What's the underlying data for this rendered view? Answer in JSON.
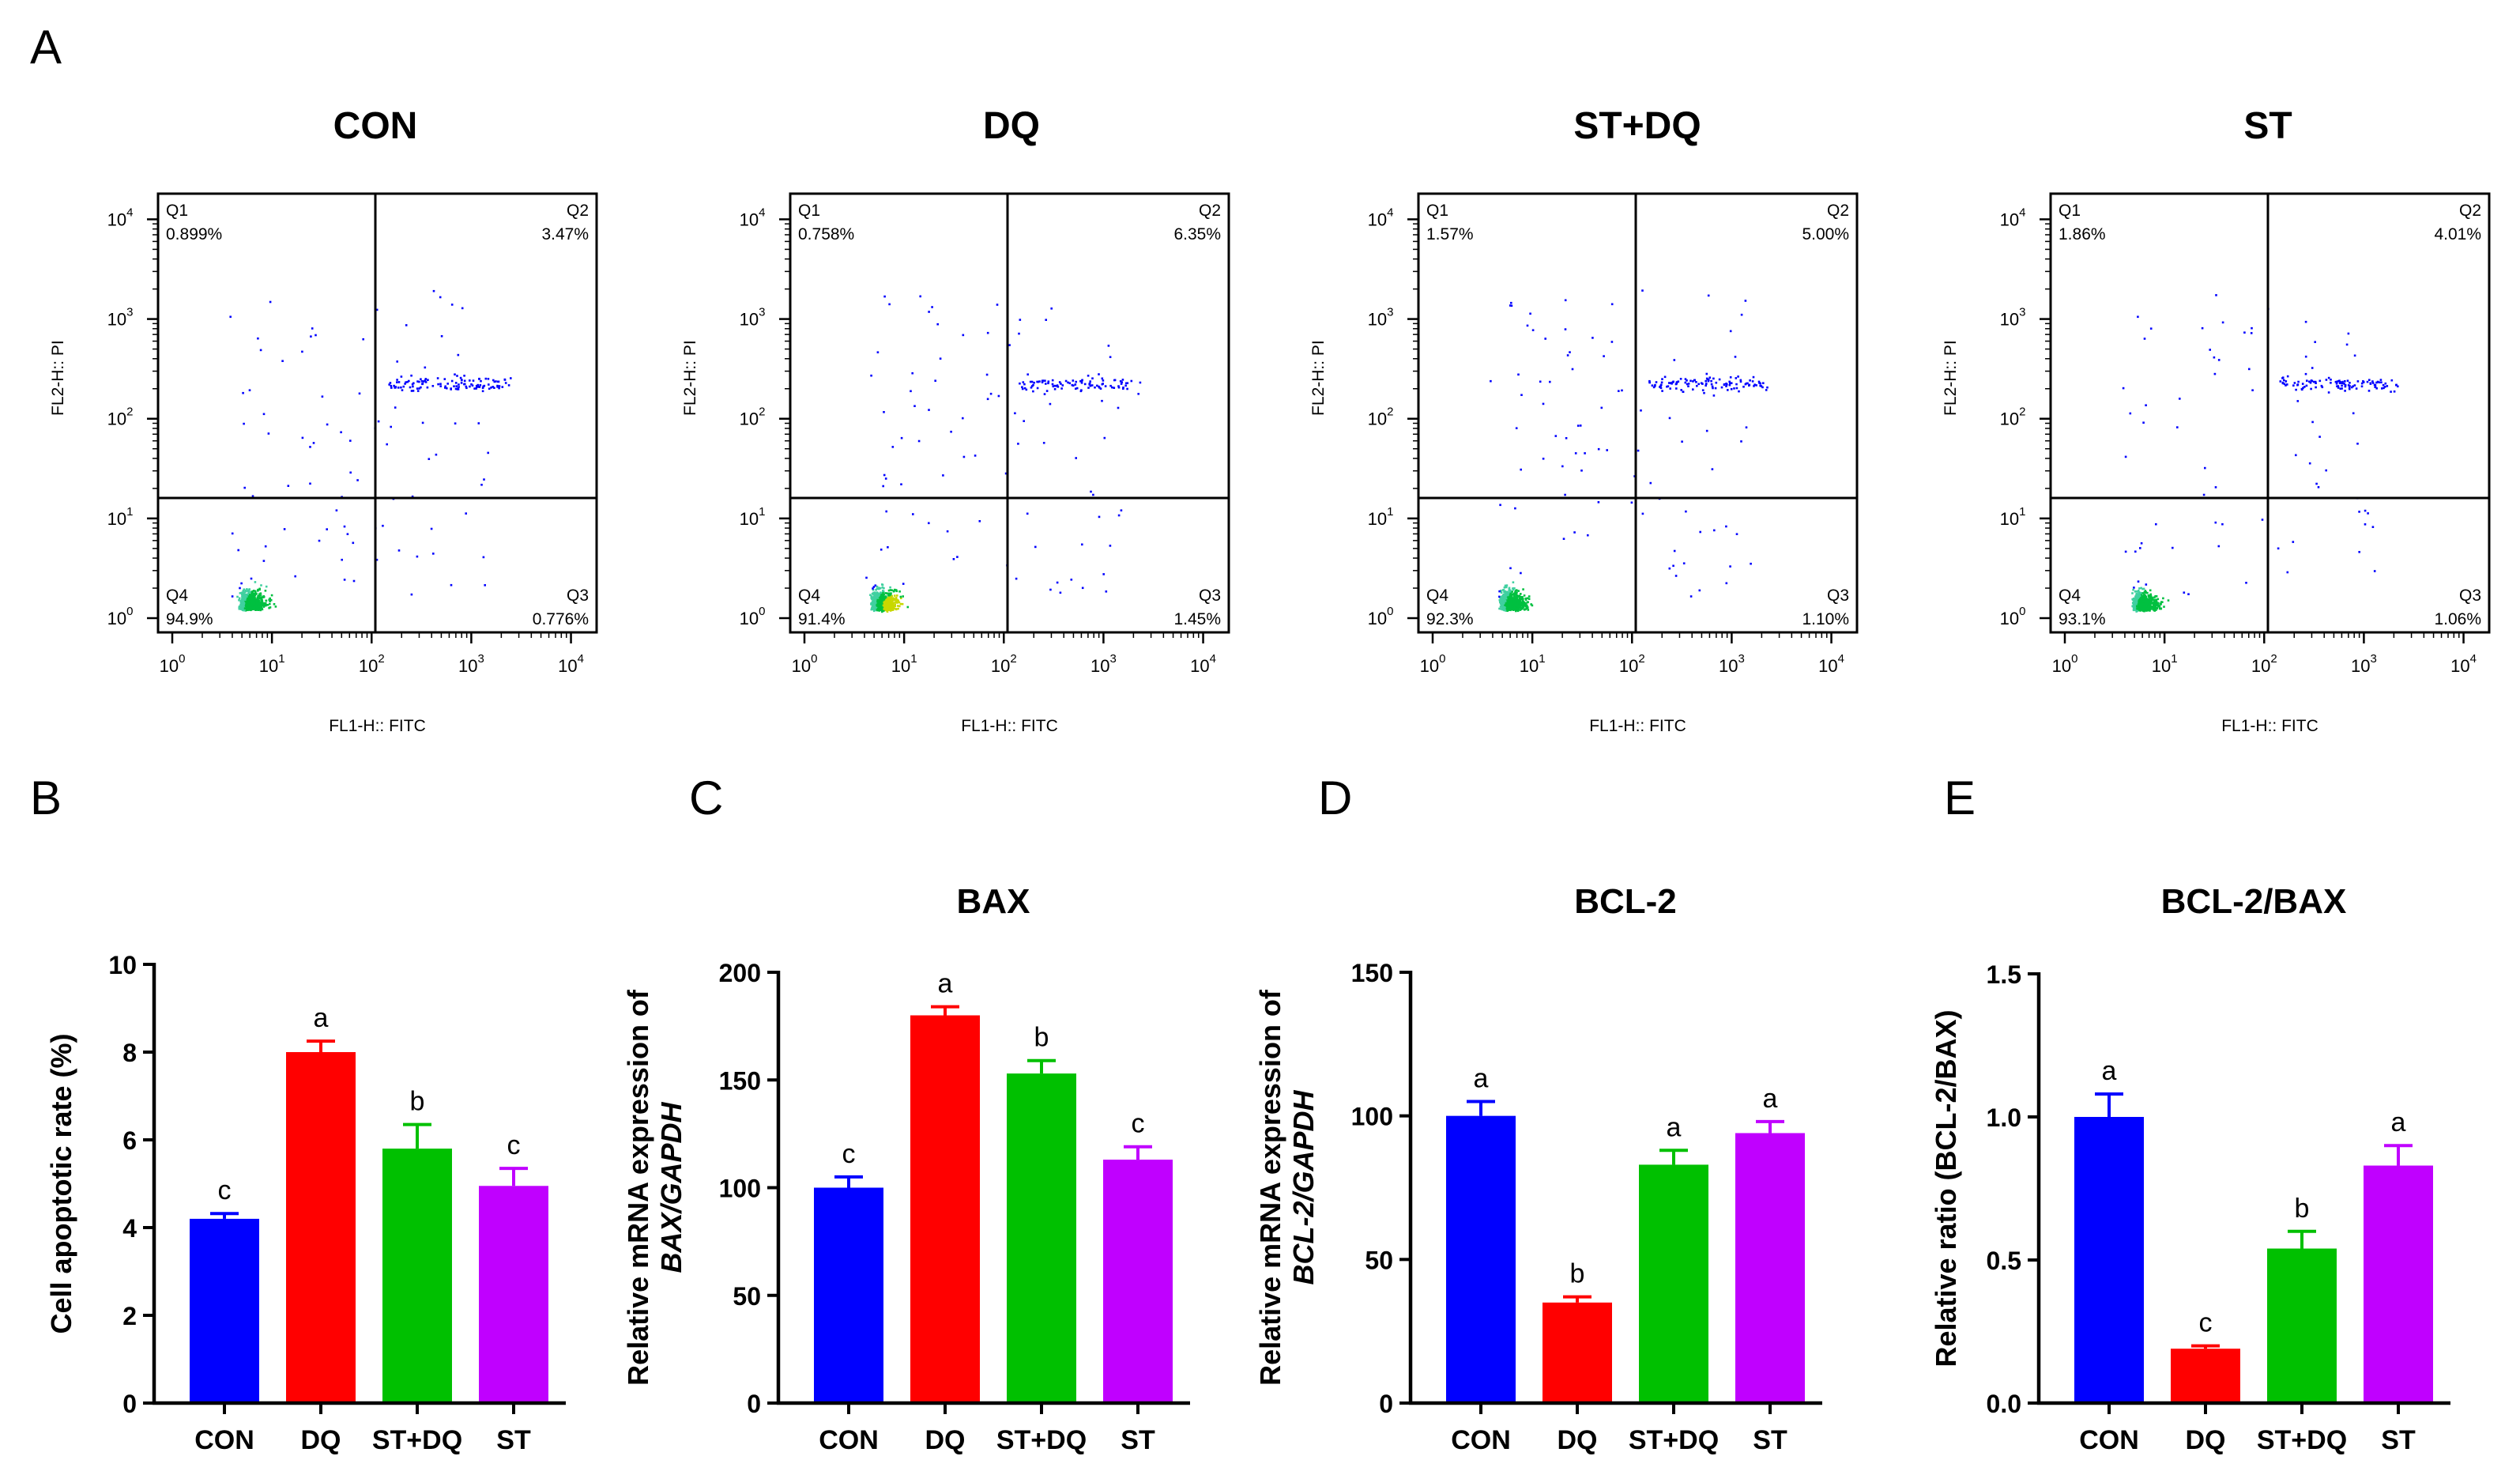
{
  "figure": {
    "panel_letters": [
      "A",
      "B",
      "C",
      "D",
      "E"
    ],
    "colors": {
      "CON": "#0000ff",
      "DQ": "#ff0000",
      "ST+DQ": "#00c000",
      "ST": "#c000ff"
    }
  },
  "flow_panels": [
    {
      "title": "CON",
      "q1_label": "Q1",
      "q1_value": "0.899%",
      "q2_label": "Q2",
      "q2_value": "3.47%",
      "q3_label": "Q3",
      "q3_value": "0.776%",
      "q4_label": "Q4",
      "q4_value": "94.9%",
      "xlabel": "FL1-H:: FITC",
      "ylabel": "FL2-H:: PI"
    },
    {
      "title": "DQ",
      "q1_label": "Q1",
      "q1_value": "0.758%",
      "q2_label": "Q2",
      "q2_value": "6.35%",
      "q3_label": "Q3",
      "q3_value": "1.45%",
      "q4_label": "Q4",
      "q4_value": "91.4%",
      "xlabel": "FL1-H:: FITC",
      "ylabel": "FL2-H:: PI"
    },
    {
      "title": "ST+DQ",
      "q1_label": "Q1",
      "q1_value": "1.57%",
      "q2_label": "Q2",
      "q2_value": "5.00%",
      "q3_label": "Q3",
      "q3_value": "1.10%",
      "q4_label": "Q4",
      "q4_value": "92.3%",
      "xlabel": "FL1-H:: FITC",
      "ylabel": "FL2-H:: PI"
    },
    {
      "title": "ST",
      "q1_label": "Q1",
      "q1_value": "1.86%",
      "q2_label": "Q2",
      "q2_value": "4.01%",
      "q3_label": "Q3",
      "q3_value": "1.06%",
      "q4_label": "Q4",
      "q4_value": "93.1%",
      "xlabel": "FL1-H:: FITC",
      "ylabel": "FL2-H:: PI"
    }
  ],
  "chart_data": [
    {
      "panel": "B",
      "type": "bar",
      "title": "",
      "ylabel_lines": [
        "Cell apoptotic rate (%)"
      ],
      "categories": [
        "CON",
        "DQ",
        "ST+DQ",
        "ST"
      ],
      "values": [
        4.2,
        8.0,
        5.8,
        4.95
      ],
      "errors": [
        0.12,
        0.25,
        0.55,
        0.4
      ],
      "letters": [
        "c",
        "a",
        "b",
        "c"
      ],
      "ylim": [
        0,
        10
      ],
      "yticks": [
        0,
        2,
        4,
        6,
        8,
        10
      ],
      "ytick_labels": [
        "0",
        "2",
        "4",
        "6",
        "8",
        "10"
      ]
    },
    {
      "panel": "C",
      "type": "bar",
      "title": "BAX",
      "ylabel_lines": [
        "Relative mRNA expression of",
        "BAX/GAPDH"
      ],
      "categories": [
        "CON",
        "DQ",
        "ST+DQ",
        "ST"
      ],
      "values": [
        100,
        180,
        153,
        113
      ],
      "errors": [
        5,
        4,
        6,
        6
      ],
      "letters": [
        "c",
        "a",
        "b",
        "c"
      ],
      "ylim": [
        0,
        200
      ],
      "yticks": [
        0,
        50,
        100,
        150,
        200
      ],
      "ytick_labels": [
        "0",
        "50",
        "100",
        "150",
        "200"
      ]
    },
    {
      "panel": "D",
      "type": "bar",
      "title": "BCL-2",
      "ylabel_lines": [
        "Relative mRNA expression of",
        "BCL-2/GAPDH"
      ],
      "categories": [
        "CON",
        "DQ",
        "ST+DQ",
        "ST"
      ],
      "values": [
        100,
        35,
        83,
        94
      ],
      "errors": [
        5,
        2,
        5,
        4
      ],
      "letters": [
        "a",
        "b",
        "a",
        "a"
      ],
      "ylim": [
        0,
        150
      ],
      "yticks": [
        0,
        50,
        100,
        150
      ],
      "ytick_labels": [
        "0",
        "50",
        "100",
        "150"
      ]
    },
    {
      "panel": "E",
      "type": "bar",
      "title": "BCL-2/BAX",
      "ylabel_lines": [
        "Relative ratio (BCL-2/BAX)"
      ],
      "categories": [
        "CON",
        "DQ",
        "ST+DQ",
        "ST"
      ],
      "values": [
        1.0,
        0.19,
        0.54,
        0.83
      ],
      "errors": [
        0.08,
        0.01,
        0.06,
        0.07
      ],
      "letters": [
        "a",
        "c",
        "b",
        "a"
      ],
      "ylim": [
        0,
        1.5
      ],
      "yticks": [
        0,
        0.5,
        1.0,
        1.5
      ],
      "ytick_labels": [
        "0.0",
        "0.5",
        "1.0",
        "1.5"
      ]
    }
  ]
}
